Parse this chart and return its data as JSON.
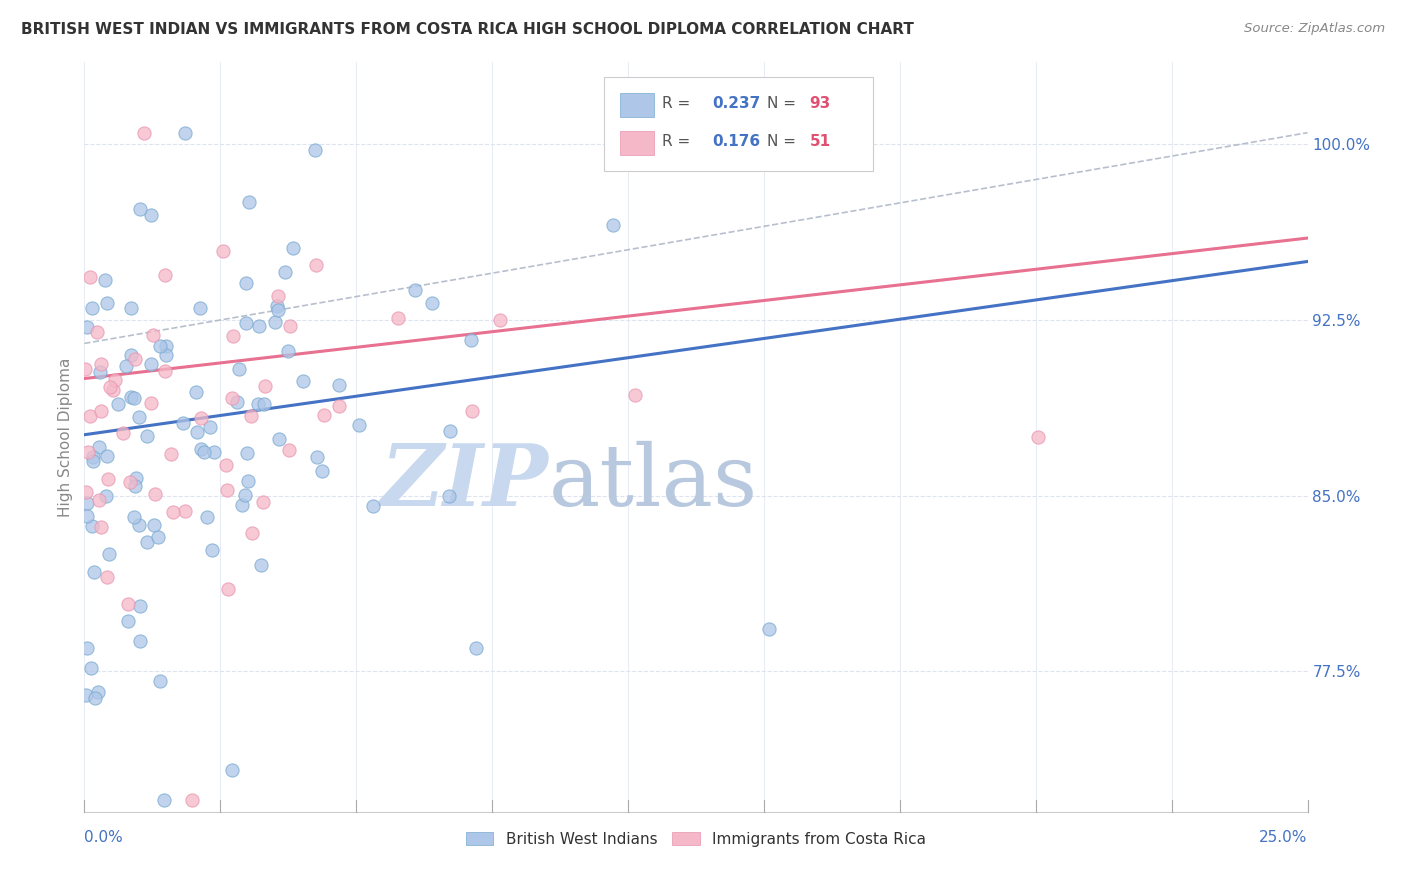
{
  "title": "BRITISH WEST INDIAN VS IMMIGRANTS FROM COSTA RICA HIGH SCHOOL DIPLOMA CORRELATION CHART",
  "source": "Source: ZipAtlas.com",
  "ylabel": "High School Diploma",
  "ytick_labels": [
    "100.0%",
    "92.5%",
    "85.0%",
    "77.5%"
  ],
  "ytick_values": [
    1.0,
    0.925,
    0.85,
    0.775
  ],
  "xlim": [
    0.0,
    0.25
  ],
  "ylim": [
    0.715,
    1.035
  ],
  "blue_R": 0.237,
  "blue_N": 93,
  "pink_R": 0.176,
  "pink_N": 51,
  "blue_fill_color": "#aec6e8",
  "pink_fill_color": "#f5b8c8",
  "blue_edge_color": "#7aaad0",
  "pink_edge_color": "#e896b0",
  "blue_line_color": "#4472c4",
  "pink_line_color": "#e87090",
  "dashed_line_color": "#b0b8c8",
  "grid_color": "#dde4f0",
  "watermark_zip_color": "#c8d8ee",
  "watermark_atlas_color": "#b8c8de",
  "legend_R_color": "#4472c4",
  "legend_N_color": "#e05070",
  "title_color": "#333333",
  "source_color": "#888888",
  "axis_label_color": "#888888",
  "tick_color": "#4472c4",
  "xtick_left_label": "0.0%",
  "xtick_right_label": "25.0%",
  "legend_blue_label": "British West Indians",
  "legend_pink_label": "Immigrants from Costa Rica"
}
